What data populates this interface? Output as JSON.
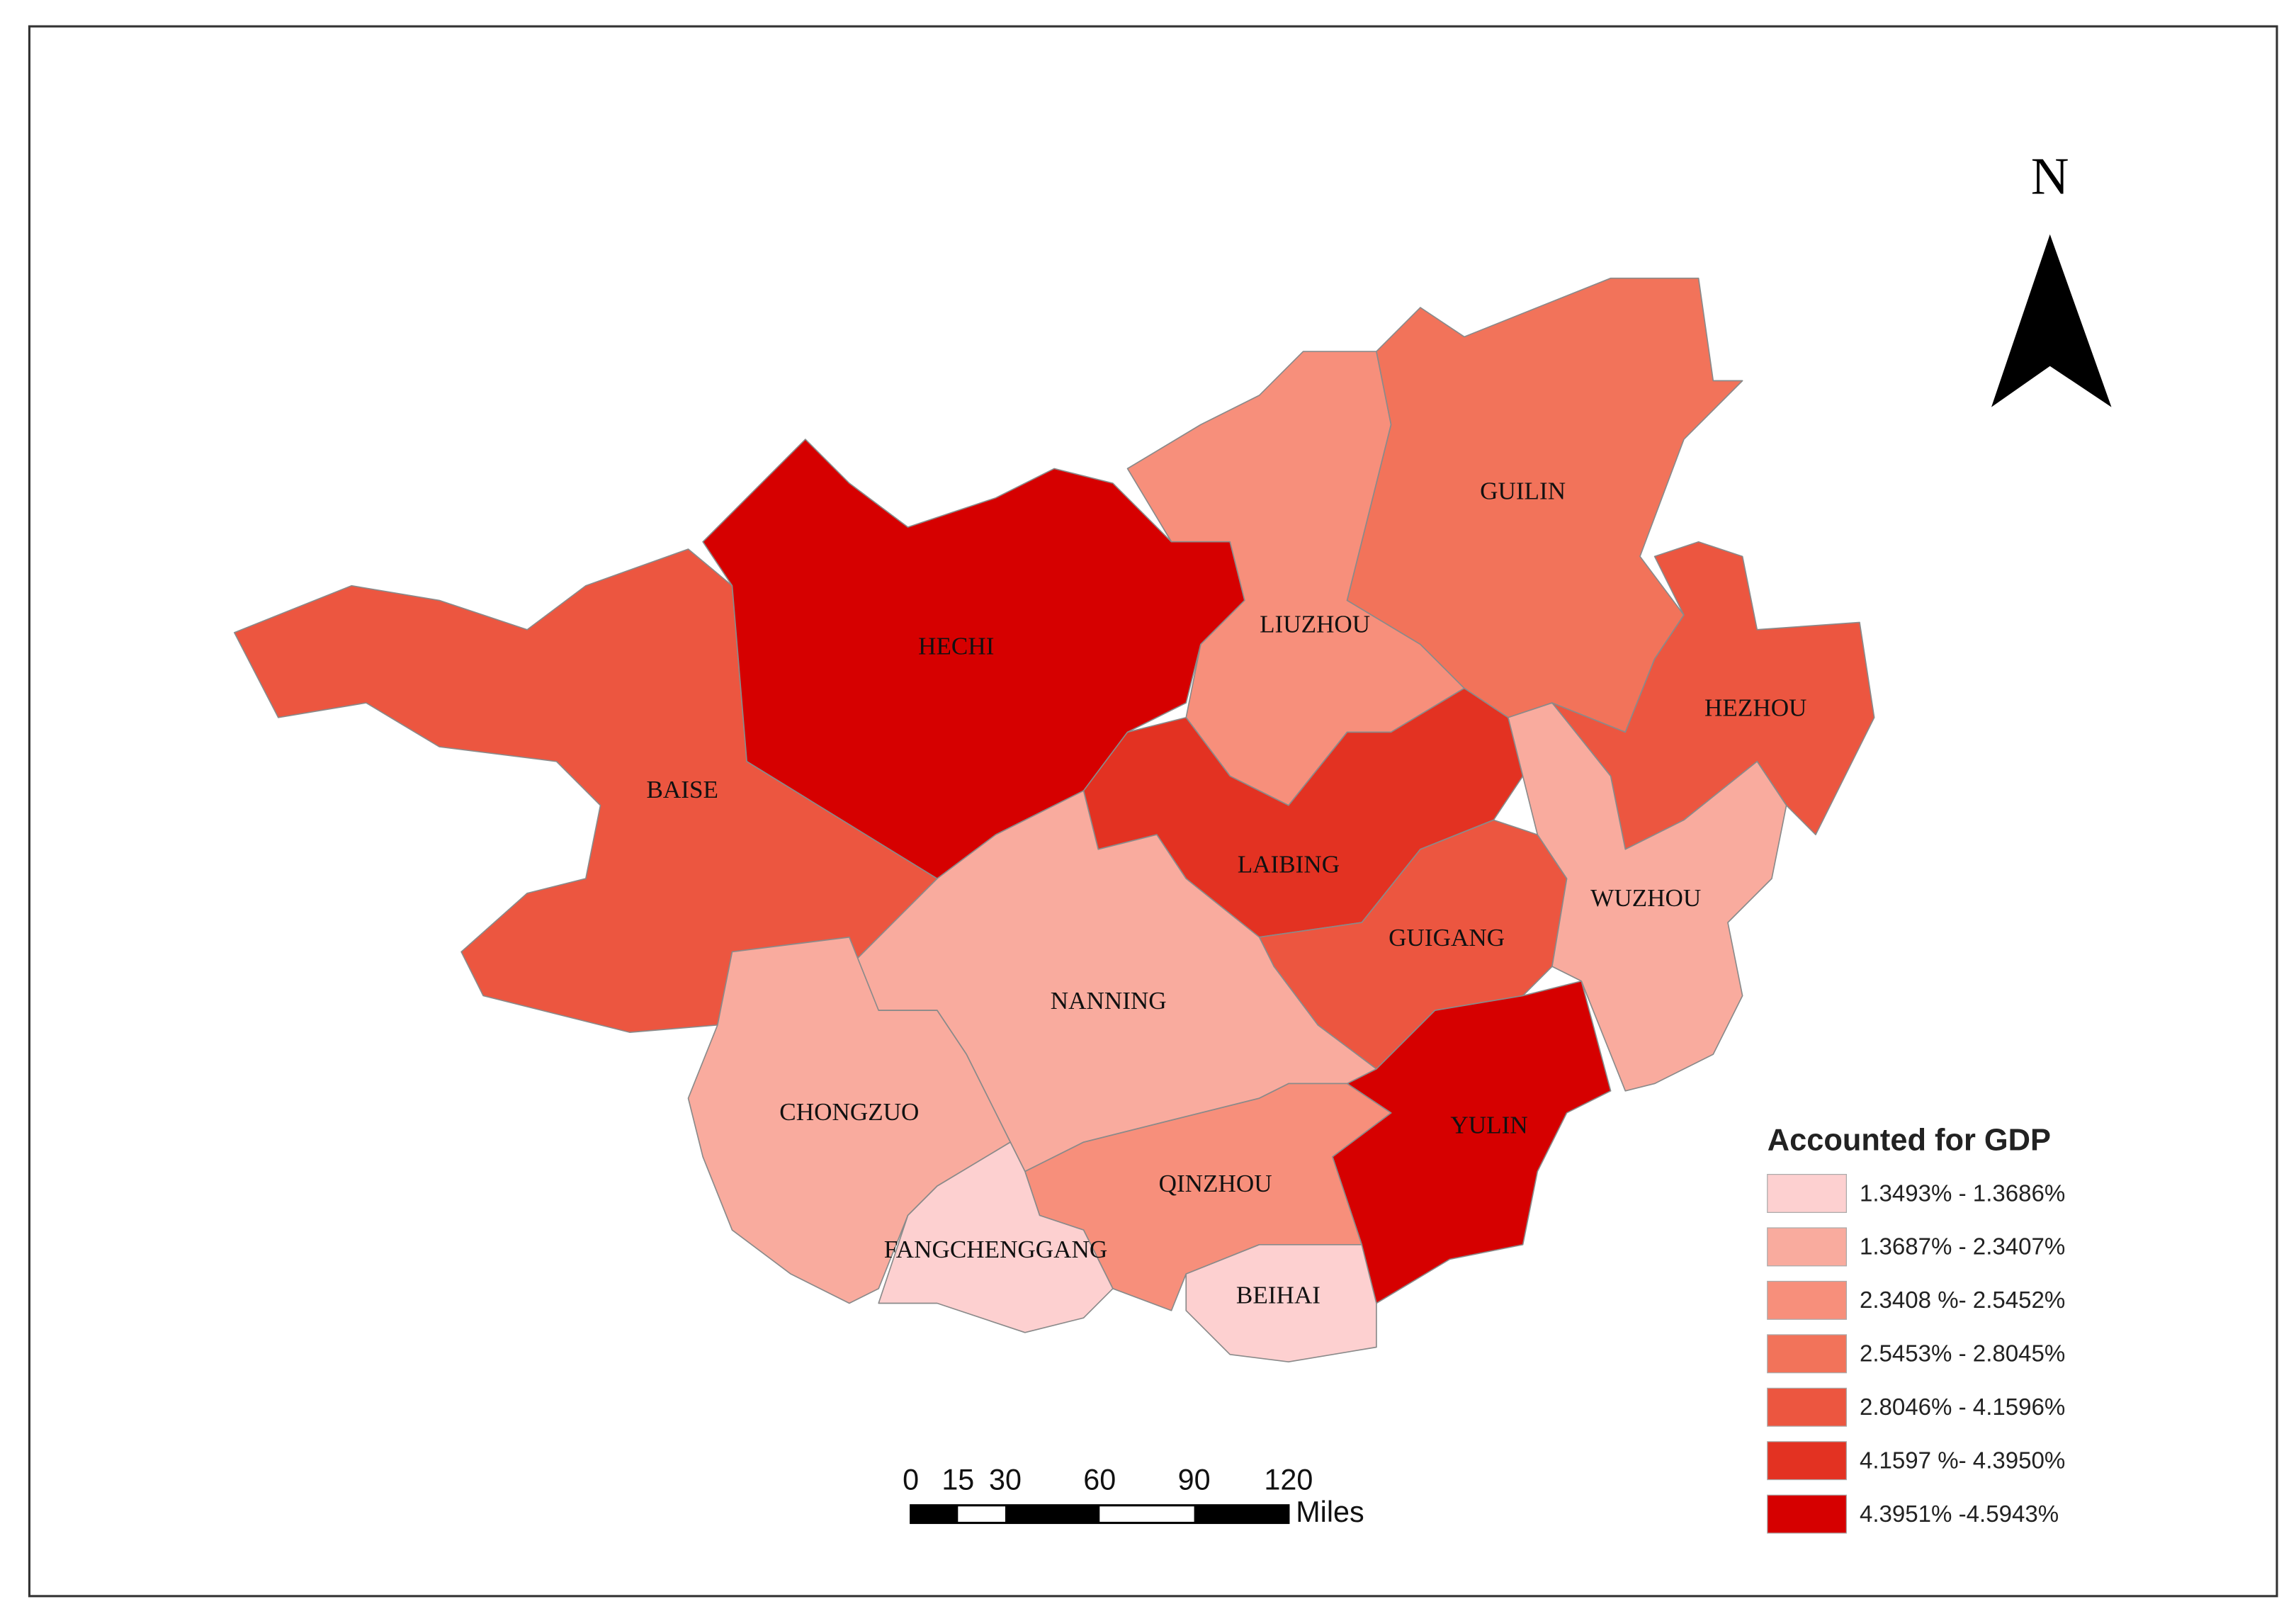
{
  "map": {
    "north": "N",
    "legend": {
      "title": "Accounted for GDP",
      "items": [
        {
          "label": "1.3493% - 1.3686%",
          "color": "#fdd0d0"
        },
        {
          "label": "1.3687% - 2.3407%",
          "color": "#f9ab9e"
        },
        {
          "label": "2.3408 %- 2.5452%",
          "color": "#f78f7b"
        },
        {
          "label": "2.5453% - 2.8045%",
          "color": "#f2735a"
        },
        {
          "label": "2.8046% - 4.1596%",
          "color": "#ec5640"
        },
        {
          "label": "4.1597 %- 4.3950%",
          "color": "#e33222"
        },
        {
          "label": "4.3951% -4.5943%",
          "color": "#d60000"
        }
      ]
    },
    "regions": [
      {
        "name": "BAISE",
        "color": "#ec5640"
      },
      {
        "name": "HECHI",
        "color": "#d60000"
      },
      {
        "name": "LIUZHOU",
        "color": "#f78f7b"
      },
      {
        "name": "GUILIN",
        "color": "#f2735a"
      },
      {
        "name": "HEZHOU",
        "color": "#ec5640"
      },
      {
        "name": "LAIBING",
        "color": "#e33222"
      },
      {
        "name": "GUIGANG",
        "color": "#ec5640"
      },
      {
        "name": "WUZHOU",
        "color": "#f9ab9e"
      },
      {
        "name": "YULIN",
        "color": "#d60000"
      },
      {
        "name": "NANNING",
        "color": "#f9ab9e"
      },
      {
        "name": "CHONGZUO",
        "color": "#f9ab9e"
      },
      {
        "name": "QINZHOU",
        "color": "#f78f7b"
      },
      {
        "name": "FANGCHENGGANG",
        "color": "#fdd0d0"
      },
      {
        "name": "BEIHAI",
        "color": "#fdd0d0"
      }
    ],
    "scale_bar": {
      "ticks": [
        0,
        15,
        30,
        60,
        90,
        120
      ],
      "unit": "Miles"
    }
  }
}
